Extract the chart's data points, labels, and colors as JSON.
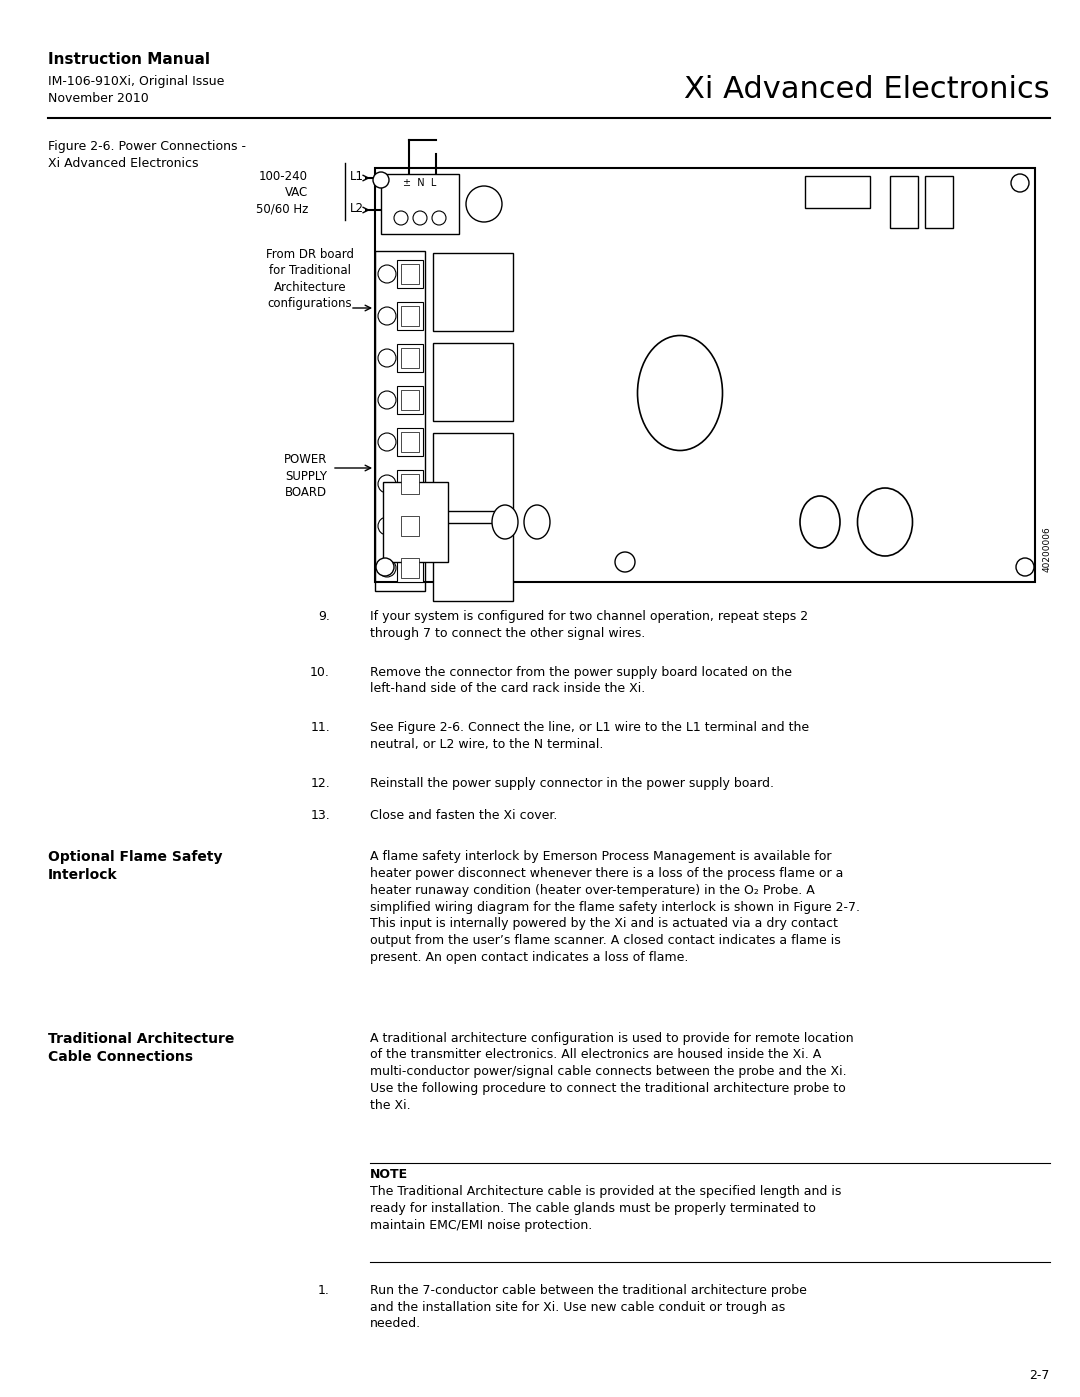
{
  "page_width": 10.8,
  "page_height": 13.97,
  "dpi": 100,
  "bg_color": "#ffffff",
  "header": {
    "bold_title": "Instruction Manual",
    "sub1": "IM-106-910Xi, Original Issue",
    "sub2": "November 2010",
    "right_title": "Xi Advanced Electronics"
  },
  "figure_caption_line1": "Figure 2-6. Power Connections -",
  "figure_caption_line2": "Xi Advanced Electronics",
  "figure_labels": {
    "voltage": "100-240",
    "vac": "VAC",
    "hz": "50/60 Hz",
    "L1": "L1",
    "L2": "L2",
    "from_dr": "From DR board\nfor Traditional\nArchitecture\nconfigurations",
    "power_supply": "POWER\nSUPPLY\nBOARD",
    "terminals": "±  N  L",
    "fig_num": "40200006"
  },
  "numbered_items": [
    {
      "num": "9.",
      "indent": "    ",
      "text": "If your system is configured for two channel operation, repeat steps 2\n        through 7 to connect the other signal wires."
    },
    {
      "num": "10.",
      "indent": "  ",
      "text": "Remove the connector from the power supply board located on the\n        left-hand side of the card rack inside the Xi."
    },
    {
      "num": "11.",
      "indent": "  ",
      "text": "See Figure 2-6. Connect the line, or L1 wire to the L1 terminal and the\n        neutral, or L2 wire, to the N terminal."
    },
    {
      "num": "12.",
      "indent": "  ",
      "text": "Reinstall the power supply connector in the power supply board."
    },
    {
      "num": "13.",
      "indent": "  ",
      "text": "Close and fasten the Xi cover."
    }
  ],
  "section1_title_line1": "Optional Flame Safety",
  "section1_title_line2": "Interlock",
  "section1_body": "A flame safety interlock by Emerson Process Management is available for\nheater power disconnect whenever there is a loss of the process flame or a\nheater runaway condition (heater over-temperature) in the O₂ Probe. A\nsimplified wiring diagram for the flame safety interlock is shown in Figure 2-7.\nThis input is internally powered by the Xi and is actuated via a dry contact\noutput from the user’s flame scanner. A closed contact indicates a flame is\npresent. An open contact indicates a loss of flame.",
  "section2_title_line1": "Traditional Architecture",
  "section2_title_line2": "Cable Connections",
  "section2_body": "A traditional architecture configuration is used to provide for remote location\nof the transmitter electronics. All electronics are housed inside the Xi. A\nmulti-conductor power/signal cable connects between the probe and the Xi.\nUse the following procedure to connect the traditional architecture probe to\nthe Xi.",
  "note_title": "NOTE",
  "note_body": "The Traditional Architecture cable is provided at the specified length and is\nready for installation. The cable glands must be properly terminated to\nmaintain EMC/EMI noise protection.",
  "final_item_num": "1.",
  "final_item_text": "Run the 7-conductor cable between the traditional architecture probe\n        and the installation site for Xi. Use new cable conduit or trough as\n        needed.",
  "page_num": "2-7"
}
